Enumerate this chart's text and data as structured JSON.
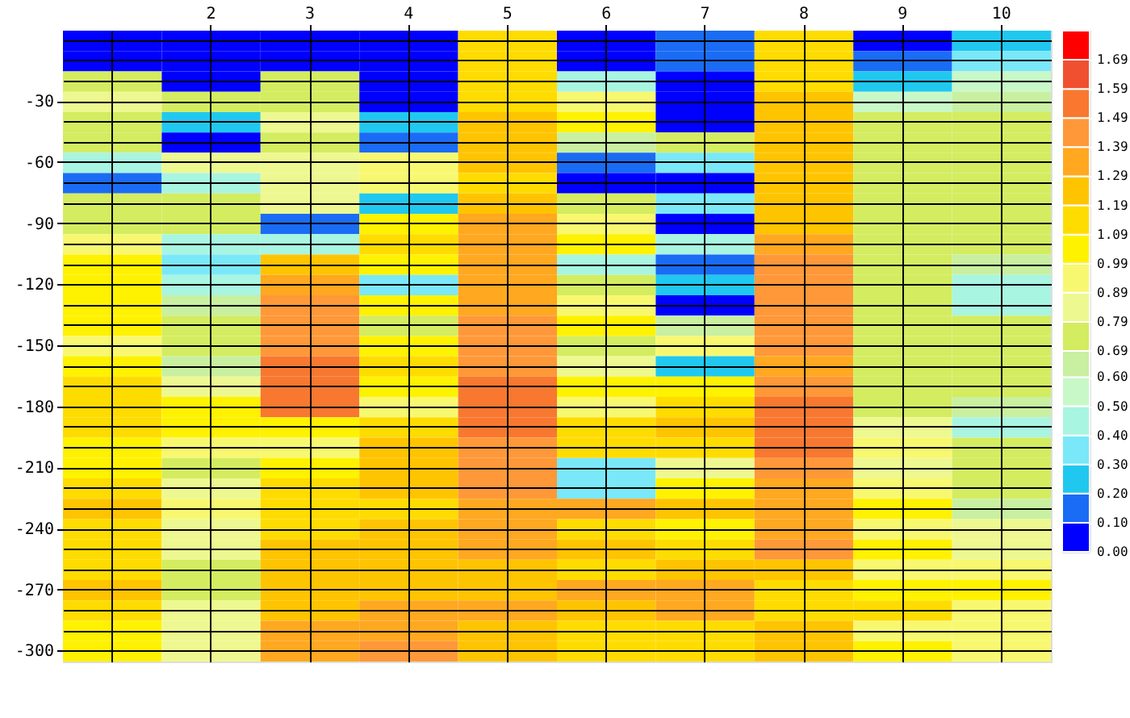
{
  "chart_data": {
    "type": "heatmap",
    "categories": [
      null,
      "2",
      "3",
      "4",
      "5",
      "6",
      "7",
      "8",
      "9",
      "10"
    ],
    "y_categories": [
      null,
      null,
      null,
      "-30",
      null,
      null,
      "-60",
      null,
      null,
      "-90",
      null,
      null,
      "-120",
      null,
      null,
      "-150",
      null,
      null,
      "-180",
      null,
      null,
      "-210",
      null,
      null,
      "-240",
      null,
      null,
      "-270",
      null,
      null,
      "-300"
    ],
    "cells": [
      [
        0.05,
        0.05,
        0.05,
        0.05,
        1.15,
        0.05,
        0.15,
        1.15,
        0.05,
        0.25
      ],
      [
        0.05,
        0.05,
        0.05,
        0.05,
        1.15,
        0.05,
        0.15,
        1.15,
        0.15,
        0.35
      ],
      [
        0.75,
        0.05,
        0.75,
        0.05,
        1.15,
        0.45,
        0.05,
        1.15,
        0.25,
        0.55
      ],
      [
        0.85,
        0.75,
        0.75,
        0.05,
        1.15,
        0.95,
        0.05,
        1.25,
        0.55,
        0.65
      ],
      [
        0.75,
        0.25,
        0.85,
        0.25,
        1.25,
        1.05,
        0.05,
        1.25,
        0.75,
        0.75
      ],
      [
        0.75,
        0.05,
        0.75,
        0.15,
        1.25,
        0.65,
        0.75,
        1.25,
        0.75,
        0.75
      ],
      [
        0.45,
        0.85,
        0.85,
        0.95,
        1.25,
        0.15,
        0.35,
        1.25,
        0.75,
        0.75
      ],
      [
        0.15,
        0.45,
        0.85,
        0.95,
        1.15,
        0.05,
        0.05,
        1.25,
        0.75,
        0.75
      ],
      [
        0.75,
        0.75,
        0.85,
        0.25,
        1.25,
        0.75,
        0.35,
        1.25,
        0.75,
        0.75
      ],
      [
        0.75,
        0.75,
        0.15,
        1.05,
        1.35,
        0.95,
        0.05,
        1.25,
        0.75,
        0.75
      ],
      [
        0.95,
        0.45,
        0.45,
        1.15,
        1.35,
        1.05,
        0.45,
        1.35,
        0.75,
        0.75
      ],
      [
        1.05,
        0.35,
        1.25,
        1.05,
        1.35,
        0.45,
        0.15,
        1.45,
        0.75,
        0.65
      ],
      [
        1.05,
        0.45,
        1.35,
        0.35,
        1.35,
        0.75,
        0.25,
        1.45,
        0.75,
        0.45
      ],
      [
        1.05,
        0.65,
        1.45,
        1.05,
        1.35,
        0.95,
        0.05,
        1.45,
        0.75,
        0.45
      ],
      [
        1.05,
        0.75,
        1.45,
        0.75,
        1.45,
        1.05,
        0.65,
        1.45,
        0.75,
        0.75
      ],
      [
        0.95,
        0.75,
        1.45,
        1.05,
        1.45,
        0.75,
        0.95,
        1.45,
        0.75,
        0.75
      ],
      [
        1.05,
        0.65,
        1.55,
        1.15,
        1.45,
        0.85,
        0.25,
        1.35,
        0.75,
        0.75
      ],
      [
        1.15,
        0.85,
        1.55,
        1.05,
        1.55,
        1.05,
        1.05,
        1.45,
        0.75,
        0.75
      ],
      [
        1.15,
        1.05,
        1.55,
        0.95,
        1.55,
        0.95,
        1.15,
        1.55,
        0.75,
        0.65
      ],
      [
        1.15,
        1.05,
        1.05,
        1.15,
        1.55,
        1.15,
        1.25,
        1.55,
        0.85,
        0.45
      ],
      [
        1.05,
        0.95,
        0.95,
        1.25,
        1.45,
        1.15,
        1.15,
        1.55,
        0.95,
        0.75
      ],
      [
        1.05,
        0.75,
        1.05,
        1.25,
        1.45,
        0.35,
        0.85,
        1.45,
        0.85,
        0.75
      ],
      [
        1.15,
        0.85,
        1.15,
        1.25,
        1.45,
        0.35,
        1.05,
        1.35,
        0.95,
        0.75
      ],
      [
        1.25,
        0.95,
        1.15,
        1.15,
        1.35,
        1.35,
        1.25,
        1.35,
        1.05,
        0.65
      ],
      [
        1.15,
        0.85,
        1.15,
        1.25,
        1.35,
        1.15,
        1.05,
        1.35,
        0.95,
        0.85
      ],
      [
        1.15,
        0.85,
        1.25,
        1.25,
        1.35,
        1.25,
        1.15,
        1.45,
        1.05,
        0.85
      ],
      [
        1.15,
        0.75,
        1.25,
        1.25,
        1.25,
        1.15,
        1.25,
        1.25,
        0.95,
        0.95
      ],
      [
        1.25,
        0.75,
        1.25,
        1.25,
        1.25,
        1.35,
        1.35,
        1.15,
        1.05,
        1.05
      ],
      [
        1.15,
        0.85,
        1.25,
        1.35,
        1.35,
        1.25,
        1.35,
        1.15,
        1.15,
        0.95
      ],
      [
        1.05,
        0.85,
        1.35,
        1.35,
        1.25,
        1.15,
        1.15,
        1.25,
        0.95,
        0.95
      ],
      [
        1.05,
        0.85,
        1.35,
        1.45,
        1.25,
        1.15,
        1.15,
        1.25,
        1.05,
        0.95
      ]
    ],
    "clim": [
      0,
      1.79
    ],
    "cticks": [
      {
        "value": 0,
        "label": "0.00"
      },
      {
        "value": 0.1,
        "label": "0.10"
      },
      {
        "value": 0.2,
        "label": "0.20"
      },
      {
        "value": 0.3,
        "label": "0.30"
      },
      {
        "value": 0.4,
        "label": "0.40"
      },
      {
        "value": 0.5,
        "label": "0.50"
      },
      {
        "value": 0.6,
        "label": "0.60"
      },
      0.69,
      0.79,
      0.89,
      0.99,
      1.09,
      1.19,
      1.29,
      1.39,
      1.49,
      1.59,
      1.69
    ],
    "colors": [
      "#0000ff",
      "#1a6cf5",
      "#20c8f0",
      "#7ae8f8",
      "#a8f5e2",
      "#c8f8c8",
      "#c8f0a0",
      "#d4ec60",
      "#eef890",
      "#f8f870",
      "#fff200",
      "#ffdc00",
      "#ffc400",
      "#ffa820",
      "#ff9838",
      "#f87830",
      "#f05030",
      "#ff0000"
    ],
    "grid": true
  }
}
